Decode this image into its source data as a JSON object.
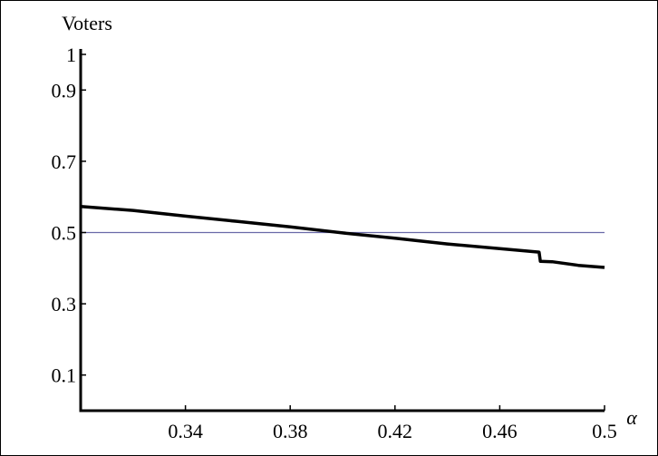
{
  "chart_data": {
    "type": "line",
    "title": "",
    "xlabel": "α",
    "ylabel": "Voters",
    "xlim": [
      0.3,
      0.5
    ],
    "ylim": [
      0,
      1
    ],
    "xticks": [
      0.34,
      0.38,
      0.42,
      0.46,
      0.5
    ],
    "xtick_labels": [
      "0.34",
      "0.38",
      "0.42",
      "0.46",
      "0.5"
    ],
    "yticks": [
      0.1,
      0.3,
      0.5,
      0.7,
      0.9,
      1
    ],
    "ytick_labels": [
      "0.1",
      "0.3",
      "0.5",
      "0.7",
      "0.9",
      "1"
    ],
    "grid": false,
    "series": [
      {
        "color": "#000000",
        "x": [
          0.3,
          0.32,
          0.34,
          0.36,
          0.38,
          0.4,
          0.42,
          0.44,
          0.46,
          0.475,
          0.4755,
          0.48,
          0.49,
          0.5
        ],
        "y": [
          0.573,
          0.562,
          0.546,
          0.531,
          0.516,
          0.499,
          0.484,
          0.468,
          0.455,
          0.445,
          0.419,
          0.418,
          0.408,
          0.402
        ]
      }
    ],
    "reference_line": {
      "y": 0.5,
      "color": "#6a6aa8"
    }
  }
}
